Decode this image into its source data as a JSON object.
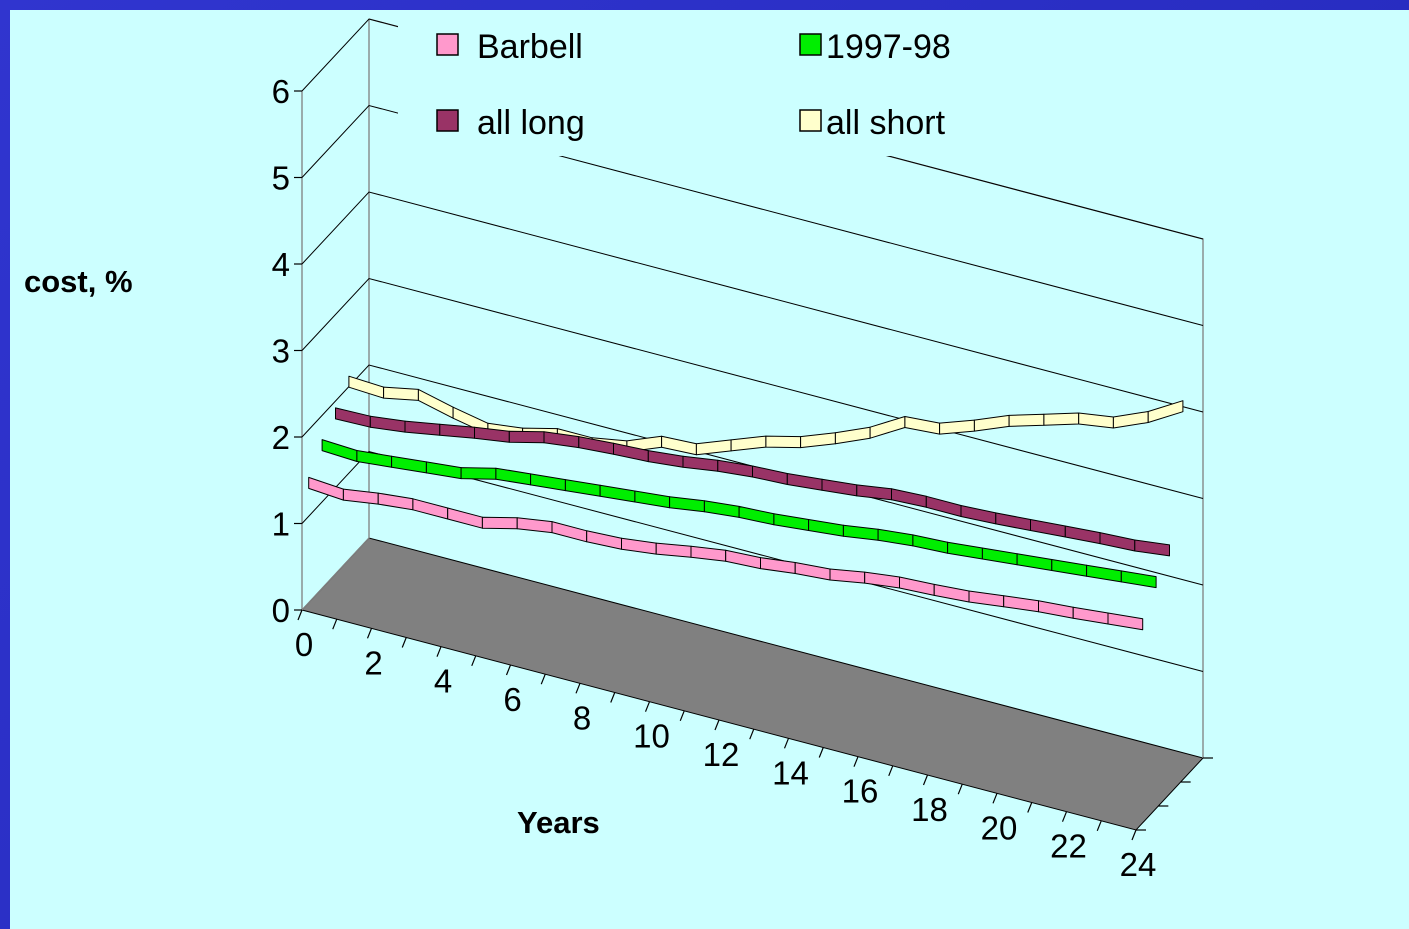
{
  "chart_data": {
    "type": "line",
    "style": "3d-ribbon",
    "title": "",
    "xlabel": "Years",
    "ylabel": "cost, %",
    "x": [
      0,
      1,
      2,
      3,
      4,
      5,
      6,
      7,
      8,
      9,
      10,
      11,
      12,
      13,
      14,
      15,
      16,
      17,
      18,
      19,
      20,
      21,
      22,
      23,
      24
    ],
    "x_ticks": [
      "0",
      "2",
      "4",
      "6",
      "8",
      "10",
      "12",
      "14",
      "16",
      "18",
      "20",
      "22",
      "24"
    ],
    "y_ticks": [
      "0",
      "1",
      "2",
      "3",
      "4",
      "5",
      "6"
    ],
    "ylim": [
      0,
      6
    ],
    "grid": true,
    "legend_position": "top",
    "series": [
      {
        "name": "Barbell",
        "color": "#ff99cc",
        "values": [
          1.45,
          1.42,
          1.48,
          1.52,
          1.52,
          1.52,
          1.62,
          1.68,
          1.68,
          1.7,
          1.75,
          1.82,
          1.88,
          1.9,
          1.95,
          1.98,
          2.05,
          2.1,
          2.12,
          2.15,
          2.2,
          2.25,
          2.28,
          2.32,
          2.36
        ]
      },
      {
        "name": "1997-98",
        "color": "#00ee00",
        "values": [
          1.72,
          1.7,
          1.74,
          1.78,
          1.82,
          1.92,
          1.96,
          2.0,
          2.04,
          2.08,
          2.12,
          2.18,
          2.22,
          2.24,
          2.28,
          2.32,
          2.38,
          2.42,
          2.44,
          2.48,
          2.52,
          2.56,
          2.6,
          2.64,
          2.68
        ]
      },
      {
        "name": "all long",
        "color": "#993366",
        "values": [
          1.92,
          1.93,
          1.98,
          2.05,
          2.12,
          2.18,
          2.28,
          2.33,
          2.36,
          2.38,
          2.42,
          2.48,
          2.52,
          2.54,
          2.58,
          2.62,
          2.68,
          2.7,
          2.7,
          2.72,
          2.75,
          2.78,
          2.81,
          2.83,
          2.88
        ]
      },
      {
        "name": "all short",
        "color": "#ffffcc",
        "values": [
          2.12,
          2.1,
          2.18,
          2.08,
          2.0,
          2.05,
          2.15,
          2.15,
          2.22,
          2.38,
          2.4,
          2.55,
          2.7,
          2.8,
          2.95,
          3.12,
          3.35,
          3.38,
          3.52,
          3.68,
          3.8,
          3.92,
          3.98,
          4.15,
          4.38
        ]
      }
    ]
  }
}
